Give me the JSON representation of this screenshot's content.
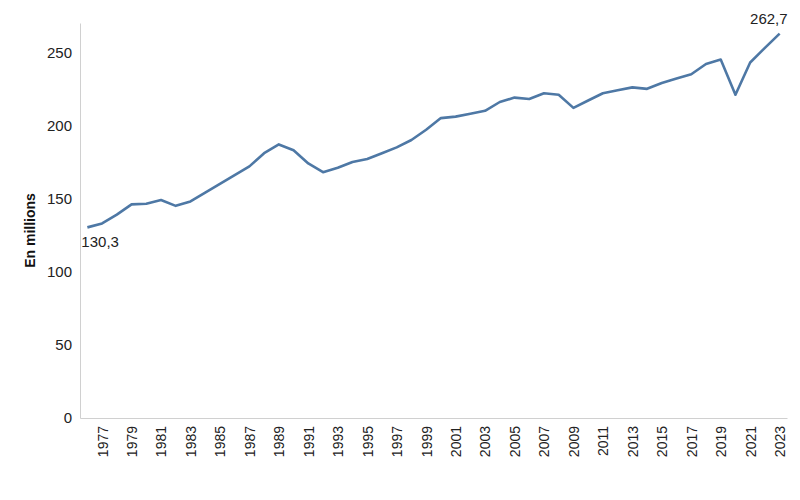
{
  "chart_data": {
    "type": "line",
    "y_label": "En millions",
    "x": [
      1976,
      1977,
      1978,
      1979,
      1980,
      1981,
      1982,
      1983,
      1984,
      1985,
      1986,
      1987,
      1988,
      1989,
      1990,
      1991,
      1992,
      1993,
      1994,
      1995,
      1996,
      1997,
      1998,
      1999,
      2000,
      2001,
      2002,
      2003,
      2004,
      2005,
      2006,
      2007,
      2008,
      2009,
      2010,
      2011,
      2012,
      2013,
      2014,
      2015,
      2016,
      2017,
      2018,
      2019,
      2020,
      2021,
      2022,
      2023
    ],
    "values": [
      130.3,
      133,
      139,
      146,
      146.5,
      149,
      145,
      148,
      154,
      160,
      166,
      172,
      181,
      187,
      183,
      174,
      168,
      171,
      175,
      177,
      181,
      185,
      190,
      197,
      205,
      206,
      208,
      210,
      216,
      219,
      218,
      222,
      221,
      212,
      217,
      222,
      224,
      226,
      225,
      229,
      232,
      235,
      242,
      245,
      221,
      243,
      253,
      262.7
    ],
    "color": "#4e78a5",
    "xlim": [
      1975.5,
      2023.5
    ],
    "xticks": [
      1977,
      1979,
      1981,
      1983,
      1985,
      1987,
      1989,
      1991,
      1993,
      1995,
      1997,
      1999,
      2001,
      2003,
      2005,
      2007,
      2009,
      2011,
      2013,
      2015,
      2017,
      2019,
      2021,
      2023
    ],
    "ylim": [
      0,
      270
    ],
    "yticks": [
      0,
      50,
      100,
      150,
      200,
      250
    ],
    "grid": false,
    "annotations": [
      {
        "text": "130,3",
        "x": 1976,
        "y": 130.3
      },
      {
        "text": "262,7",
        "x": 2023,
        "y": 262.7
      }
    ]
  }
}
